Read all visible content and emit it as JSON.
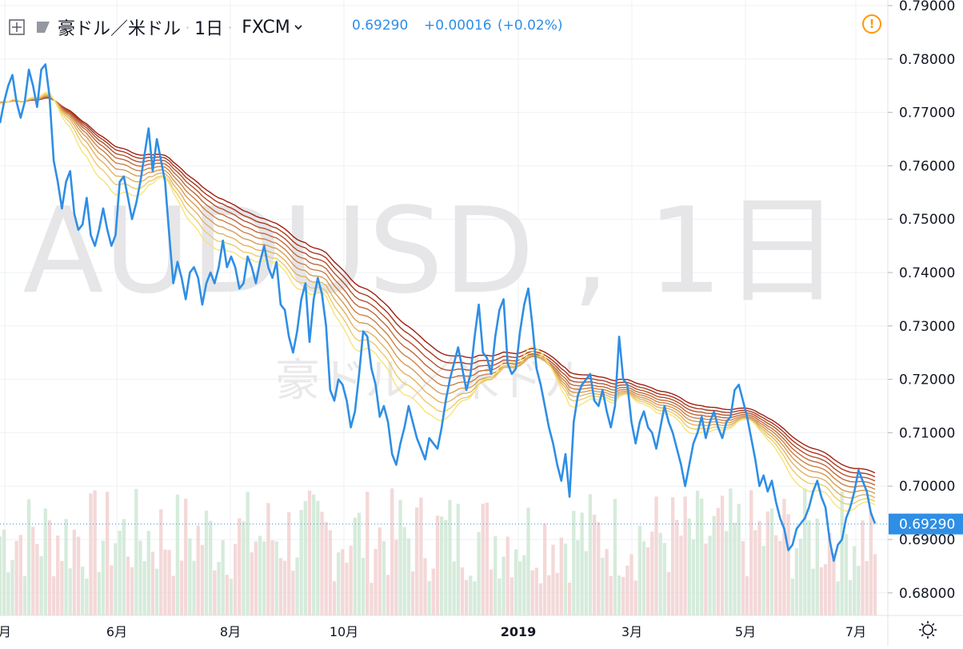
{
  "header": {
    "symbol": "豪ドル／米ドル",
    "interval": "1日",
    "exchange": "FXCM",
    "last_price": "0.69290",
    "change": "+0.00016",
    "change_pct": "(+0.02%)"
  },
  "watermark": {
    "line1": "AUDUSD , 1日",
    "line2": "豪ドル／米ドル"
  },
  "price_tag": "0.69290",
  "colors": {
    "price_line": "#2f8ee5",
    "ribbon_fast": "#f7e37a",
    "ribbon_slow": "#9e1f12",
    "volume_up": "#cfe7d5",
    "volume_down": "#f2d1d1",
    "grid": "#eef0f3"
  },
  "chart_data": {
    "type": "line",
    "title": "豪ドル／米ドル 1日 FXCM",
    "ylim": [
      0.675,
      0.79
    ],
    "y_scale_position": "right",
    "grid": true,
    "y_tick_labels": [
      "0.79000",
      "0.78000",
      "0.77000",
      "0.76000",
      "0.75000",
      "0.74000",
      "0.73000",
      "0.72000",
      "0.71000",
      "0.70000",
      "0.69000",
      "0.68000"
    ],
    "x_tick_labels": [
      "月",
      "6月",
      "8月",
      "10月",
      "2019",
      "3月",
      "5月",
      "7月"
    ],
    "last_value": 0.6929,
    "price_series": [
      0.768,
      0.772,
      0.775,
      0.777,
      0.772,
      0.769,
      0.772,
      0.778,
      0.775,
      0.771,
      0.778,
      0.779,
      0.773,
      0.761,
      0.757,
      0.752,
      0.757,
      0.759,
      0.751,
      0.748,
      0.749,
      0.754,
      0.747,
      0.745,
      0.748,
      0.752,
      0.748,
      0.745,
      0.747,
      0.757,
      0.758,
      0.754,
      0.75,
      0.753,
      0.757,
      0.762,
      0.767,
      0.759,
      0.765,
      0.761,
      0.757,
      0.747,
      0.738,
      0.742,
      0.739,
      0.735,
      0.74,
      0.741,
      0.739,
      0.734,
      0.738,
      0.74,
      0.738,
      0.741,
      0.746,
      0.741,
      0.743,
      0.741,
      0.737,
      0.738,
      0.743,
      0.741,
      0.738,
      0.742,
      0.745,
      0.741,
      0.739,
      0.742,
      0.734,
      0.733,
      0.728,
      0.725,
      0.729,
      0.735,
      0.738,
      0.727,
      0.735,
      0.739,
      0.736,
      0.73,
      0.718,
      0.716,
      0.72,
      0.719,
      0.716,
      0.711,
      0.714,
      0.721,
      0.729,
      0.728,
      0.722,
      0.719,
      0.713,
      0.715,
      0.712,
      0.706,
      0.704,
      0.708,
      0.711,
      0.715,
      0.712,
      0.709,
      0.707,
      0.705,
      0.709,
      0.708,
      0.707,
      0.711,
      0.716,
      0.72,
      0.723,
      0.726,
      0.722,
      0.718,
      0.721,
      0.728,
      0.734,
      0.725,
      0.724,
      0.721,
      0.728,
      0.733,
      0.735,
      0.723,
      0.721,
      0.722,
      0.729,
      0.734,
      0.737,
      0.73,
      0.722,
      0.719,
      0.715,
      0.711,
      0.708,
      0.704,
      0.701,
      0.706,
      0.698,
      0.712,
      0.717,
      0.719,
      0.72,
      0.721,
      0.716,
      0.715,
      0.718,
      0.714,
      0.711,
      0.715,
      0.728,
      0.72,
      0.719,
      0.712,
      0.708,
      0.712,
      0.714,
      0.711,
      0.71,
      0.707,
      0.711,
      0.715,
      0.712,
      0.71,
      0.707,
      0.704,
      0.7,
      0.704,
      0.708,
      0.71,
      0.713,
      0.709,
      0.712,
      0.714,
      0.711,
      0.709,
      0.712,
      0.713,
      0.718,
      0.719,
      0.716,
      0.713,
      0.709,
      0.705,
      0.7,
      0.702,
      0.699,
      0.701,
      0.697,
      0.694,
      0.692,
      0.688,
      0.689,
      0.692,
      0.693,
      0.694,
      0.696,
      0.699,
      0.701,
      0.698,
      0.696,
      0.69,
      0.686,
      0.689,
      0.69,
      0.694,
      0.696,
      0.699,
      0.703,
      0.701,
      0.699,
      0.695,
      0.693
    ],
    "ribbon_periods": [
      20,
      25,
      30,
      35,
      40,
      45,
      50,
      55,
      60
    ]
  }
}
